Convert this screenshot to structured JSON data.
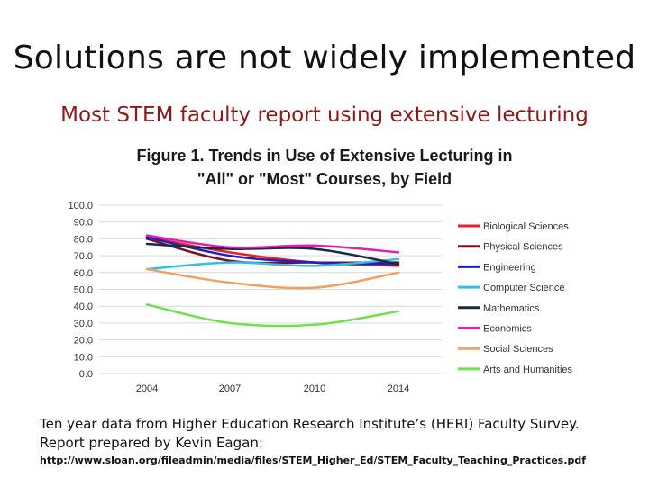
{
  "slide": {
    "title": "Solutions are not widely implemented",
    "subtitle": "Most STEM faculty report using extensive lecturing",
    "caption_line1": "Ten year data from Higher Education Research Institute’s (HERI) Faculty Survey.",
    "caption_line2": "Report prepared by Kevin Eagan:",
    "url": "http://www.sloan.org/fileadmin/media/files/STEM_Higher_Ed/STEM_Faculty_Teaching_Practices.pdf"
  },
  "chart_data": {
    "type": "line",
    "title_line1": "Figure 1. Trends in Use of Extensive Lecturing in",
    "title_line2": "\"All\" or \"Most\" Courses, by Field",
    "x": [
      "2004",
      "2007",
      "2010",
      "2014"
    ],
    "ylim": [
      0,
      100
    ],
    "yticks": [
      "0.0",
      "10.0",
      "20.0",
      "30.0",
      "40.0",
      "50.0",
      "60.0",
      "70.0",
      "80.0",
      "90.0",
      "100.0"
    ],
    "grid": true,
    "legend_position": "right",
    "series": [
      {
        "name": "Biological Sciences",
        "color": "#e8202a",
        "values": [
          81,
          72,
          66,
          64
        ]
      },
      {
        "name": "Physical Sciences",
        "color": "#7a1020",
        "values": [
          80,
          67,
          66,
          66
        ]
      },
      {
        "name": "Engineering",
        "color": "#2020c8",
        "values": [
          81,
          70,
          66,
          65
        ]
      },
      {
        "name": "Computer Science",
        "color": "#30c0e0",
        "values": [
          62,
          66,
          64,
          68
        ]
      },
      {
        "name": "Mathematics",
        "color": "#1a2a4a",
        "values": [
          77,
          74,
          74,
          65
        ]
      },
      {
        "name": "Economics",
        "color": "#e020b0",
        "values": [
          82,
          75,
          76,
          72
        ]
      },
      {
        "name": "Social Sciences",
        "color": "#f0a060",
        "values": [
          62,
          54,
          51,
          60
        ]
      },
      {
        "name": "Arts and Humanities",
        "color": "#70e050",
        "values": [
          41,
          30,
          29,
          37
        ]
      }
    ]
  }
}
